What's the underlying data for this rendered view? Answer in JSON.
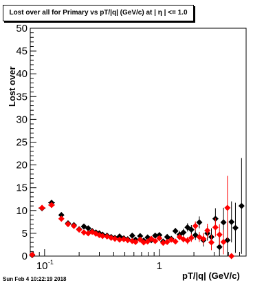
{
  "chart_data": {
    "type": "scatter",
    "title": "Lost over all for Primary vs pT/|q| (GeV/c) at |  η | <= 1.0",
    "xlabel": "pT/|q| (GeV/c)",
    "ylabel": "Lost over all (%)",
    "x_scale": "log",
    "xlim": [
      0.075,
      5.7
    ],
    "ylim": [
      0,
      50
    ],
    "grid": false,
    "y_ticks": [
      "0",
      "5",
      "10",
      "15",
      "20",
      "25",
      "30",
      "35",
      "40",
      "45",
      "50"
    ],
    "x_ticks": [
      "10^{-1}",
      "1"
    ],
    "marker_colors": {
      "Black": "#000000",
      "Red": "#ff0000"
    },
    "series": [
      {
        "marker_color": "Black",
        "x": [
          0.078,
          0.095,
          0.115,
          0.14,
          0.16,
          0.18,
          0.2,
          0.22,
          0.24,
          0.26,
          0.28,
          0.3,
          0.32,
          0.35,
          0.38,
          0.41,
          0.45,
          0.49,
          0.53,
          0.58,
          0.62,
          0.68,
          0.73,
          0.79,
          0.85,
          0.92,
          1.0,
          1.08,
          1.17,
          1.27,
          1.38,
          1.5,
          1.62,
          1.76,
          1.9,
          2.06,
          2.23,
          2.42,
          2.62,
          2.84,
          3.08,
          3.34,
          3.62,
          3.92,
          4.25,
          4.6,
          5.2
        ],
        "y": [
          0.2,
          10.5,
          11.7,
          9.0,
          7.2,
          6.8,
          5.9,
          6.5,
          6.1,
          5.5,
          5.2,
          5.0,
          4.7,
          4.5,
          4.2,
          4.0,
          4.3,
          3.9,
          3.7,
          4.5,
          3.6,
          4.4,
          3.4,
          4.1,
          3.5,
          4.5,
          4.6,
          3.2,
          4.2,
          3.8,
          5.5,
          4.7,
          5.2,
          6.3,
          5.8,
          4.6,
          7.4,
          3.5,
          5.0,
          4.2,
          8.2,
          2.0,
          7.4,
          3.5,
          7.5,
          6.2,
          11.0
        ],
        "yerr": [
          0.1,
          0.3,
          0.4,
          0.5,
          0.4,
          0.4,
          0.4,
          0.4,
          0.3,
          0.3,
          0.3,
          0.3,
          0.3,
          0.3,
          0.3,
          0.3,
          0.3,
          0.3,
          0.3,
          0.4,
          0.4,
          0.4,
          0.4,
          0.4,
          0.4,
          0.5,
          0.5,
          0.5,
          0.6,
          0.6,
          0.7,
          0.8,
          0.8,
          0.9,
          1.0,
          1.1,
          1.3,
          1.4,
          1.6,
          1.9,
          2.3,
          2.7,
          3.2,
          3.8,
          4.5,
          5.5,
          10.5
        ]
      },
      {
        "marker_color": "Red",
        "x": [
          0.078,
          0.095,
          0.115,
          0.14,
          0.16,
          0.18,
          0.2,
          0.22,
          0.24,
          0.26,
          0.28,
          0.3,
          0.32,
          0.35,
          0.38,
          0.41,
          0.45,
          0.49,
          0.53,
          0.58,
          0.62,
          0.68,
          0.73,
          0.79,
          0.85,
          0.92,
          1.0,
          1.08,
          1.17,
          1.27,
          1.38,
          1.5,
          1.62,
          1.76,
          1.9,
          2.06,
          2.23,
          2.42,
          2.62,
          2.84,
          3.08,
          3.34,
          3.62,
          3.92,
          4.25
        ],
        "y": [
          0.3,
          10.6,
          11.2,
          8.2,
          7.0,
          6.6,
          5.8,
          5.2,
          5.0,
          5.3,
          4.9,
          4.6,
          4.4,
          4.3,
          4.0,
          3.8,
          3.6,
          3.7,
          3.5,
          3.3,
          3.1,
          3.6,
          3.0,
          3.2,
          3.8,
          3.3,
          3.9,
          2.9,
          3.1,
          3.6,
          3.2,
          4.2,
          3.7,
          3.4,
          4.0,
          6.6,
          4.2,
          3.8,
          5.6,
          3.0,
          6.3,
          4.7,
          3.1,
          10.6,
          0.0
        ],
        "yerr": [
          0.1,
          0.3,
          0.4,
          0.5,
          0.4,
          0.4,
          0.4,
          0.3,
          0.3,
          0.3,
          0.3,
          0.3,
          0.3,
          0.3,
          0.3,
          0.3,
          0.3,
          0.3,
          0.3,
          0.3,
          0.3,
          0.4,
          0.4,
          0.4,
          0.4,
          0.4,
          0.5,
          0.5,
          0.5,
          0.6,
          0.6,
          0.7,
          0.7,
          0.8,
          0.9,
          1.0,
          1.1,
          1.3,
          1.5,
          1.7,
          2.0,
          2.3,
          2.7,
          7.0,
          0.0
        ]
      }
    ]
  },
  "footer": {
    "timestamp": "Sun Feb  4 10:22:19 2018"
  }
}
